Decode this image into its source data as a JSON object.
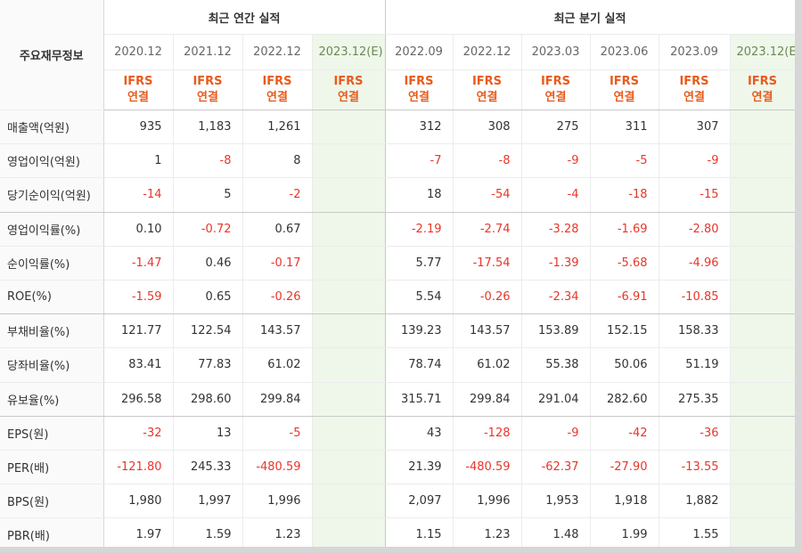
{
  "header": {
    "row_label": "주요재무정보",
    "annual_title": "최근 연간 실적",
    "quarterly_title": "최근 분기 실적",
    "annual_periods": [
      "2020.12",
      "2021.12",
      "2022.12",
      "2023.12(E)"
    ],
    "quarterly_periods": [
      "2022.09",
      "2022.12",
      "2023.03",
      "2023.06",
      "2023.09",
      "2023.12(E)"
    ],
    "ifrs_top": "IFRS",
    "ifrs_bottom": "연결"
  },
  "rows": [
    {
      "label": "매출액(억원)",
      "annual": [
        "935",
        "1,183",
        "1,261",
        ""
      ],
      "quarterly": [
        "312",
        "308",
        "275",
        "311",
        "307",
        ""
      ]
    },
    {
      "label": "영업이익(억원)",
      "annual": [
        "1",
        "-8",
        "8",
        ""
      ],
      "quarterly": [
        "-7",
        "-8",
        "-9",
        "-5",
        "-9",
        ""
      ]
    },
    {
      "label": "당기순이익(억원)",
      "annual": [
        "-14",
        "5",
        "-2",
        ""
      ],
      "quarterly": [
        "18",
        "-54",
        "-4",
        "-18",
        "-15",
        ""
      ]
    },
    {
      "label": "영업이익률(%)",
      "annual": [
        "0.10",
        "-0.72",
        "0.67",
        ""
      ],
      "quarterly": [
        "-2.19",
        "-2.74",
        "-3.28",
        "-1.69",
        "-2.80",
        ""
      ]
    },
    {
      "label": "순이익률(%)",
      "annual": [
        "-1.47",
        "0.46",
        "-0.17",
        ""
      ],
      "quarterly": [
        "5.77",
        "-17.54",
        "-1.39",
        "-5.68",
        "-4.96",
        ""
      ]
    },
    {
      "label": "ROE(%)",
      "annual": [
        "-1.59",
        "0.65",
        "-0.26",
        ""
      ],
      "quarterly": [
        "5.54",
        "-0.26",
        "-2.34",
        "-6.91",
        "-10.85",
        ""
      ]
    },
    {
      "label": "부채비율(%)",
      "annual": [
        "121.77",
        "122.54",
        "143.57",
        ""
      ],
      "quarterly": [
        "139.23",
        "143.57",
        "153.89",
        "152.15",
        "158.33",
        ""
      ]
    },
    {
      "label": "당좌비율(%)",
      "annual": [
        "83.41",
        "77.83",
        "61.02",
        ""
      ],
      "quarterly": [
        "78.74",
        "61.02",
        "55.38",
        "50.06",
        "51.19",
        ""
      ]
    },
    {
      "label": "유보율(%)",
      "annual": [
        "296.58",
        "298.60",
        "299.84",
        ""
      ],
      "quarterly": [
        "315.71",
        "299.84",
        "291.04",
        "282.60",
        "275.35",
        ""
      ]
    },
    {
      "label": "EPS(원)",
      "annual": [
        "-32",
        "13",
        "-5",
        ""
      ],
      "quarterly": [
        "43",
        "-128",
        "-9",
        "-42",
        "-36",
        ""
      ]
    },
    {
      "label": "PER(배)",
      "annual": [
        "-121.80",
        "245.33",
        "-480.59",
        ""
      ],
      "quarterly": [
        "21.39",
        "-480.59",
        "-62.37",
        "-27.90",
        "-13.55",
        ""
      ]
    },
    {
      "label": "BPS(원)",
      "annual": [
        "1,980",
        "1,997",
        "1,996",
        ""
      ],
      "quarterly": [
        "2,097",
        "1,996",
        "1,953",
        "1,918",
        "1,882",
        ""
      ]
    },
    {
      "label": "PBR(배)",
      "annual": [
        "1.97",
        "1.59",
        "1.23",
        ""
      ],
      "quarterly": [
        "1.15",
        "1.23",
        "1.48",
        "1.99",
        "1.55",
        ""
      ]
    }
  ],
  "colors": {
    "negative": "#e8362a",
    "ifrs": "#e85b1d",
    "estimate_bg": "#eef7ea"
  }
}
